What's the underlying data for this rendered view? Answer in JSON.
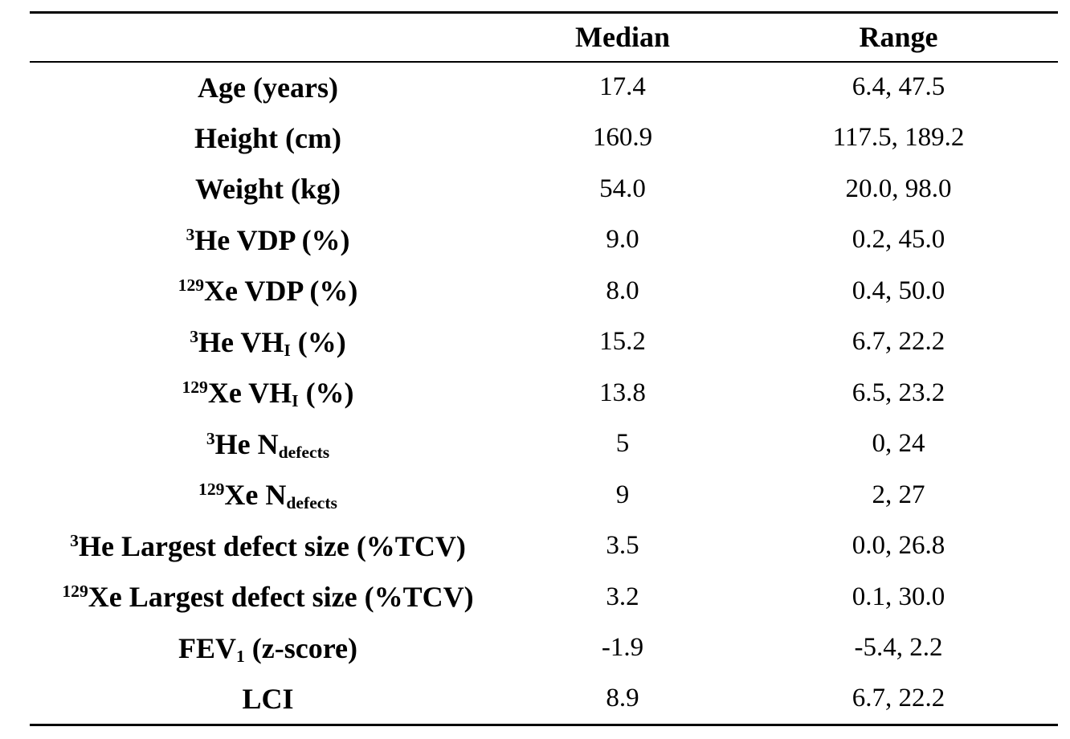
{
  "colors": {
    "text": "#000000",
    "background": "#ffffff",
    "rule": "#000000"
  },
  "table": {
    "columns": [
      {
        "label": ""
      },
      {
        "label": "Median"
      },
      {
        "label": "Range"
      }
    ],
    "rows": [
      {
        "label": [
          {
            "t": "text",
            "v": "Age (years)"
          }
        ],
        "median": "17.4",
        "range": "6.4, 47.5"
      },
      {
        "label": [
          {
            "t": "text",
            "v": "Height (cm)"
          }
        ],
        "median": "160.9",
        "range": "117.5, 189.2"
      },
      {
        "label": [
          {
            "t": "text",
            "v": "Weight (kg)"
          }
        ],
        "median": "54.0",
        "range": "20.0, 98.0"
      },
      {
        "label": [
          {
            "t": "sup",
            "v": "3"
          },
          {
            "t": "text",
            "v": "He VDP (%)"
          }
        ],
        "median": "9.0",
        "range": "0.2, 45.0"
      },
      {
        "label": [
          {
            "t": "sup",
            "v": "129"
          },
          {
            "t": "text",
            "v": "Xe VDP (%)"
          }
        ],
        "median": "8.0",
        "range": "0.4, 50.0"
      },
      {
        "label": [
          {
            "t": "sup",
            "v": "3"
          },
          {
            "t": "text",
            "v": "He VH"
          },
          {
            "t": "sub",
            "v": "I"
          },
          {
            "t": "text",
            "v": " (%)"
          }
        ],
        "median": "15.2",
        "range": "6.7, 22.2"
      },
      {
        "label": [
          {
            "t": "sup",
            "v": "129"
          },
          {
            "t": "text",
            "v": "Xe VH"
          },
          {
            "t": "sub",
            "v": "I"
          },
          {
            "t": "text",
            "v": " (%)"
          }
        ],
        "median": "13.8",
        "range": "6.5, 23.2"
      },
      {
        "label": [
          {
            "t": "sup",
            "v": "3"
          },
          {
            "t": "text",
            "v": "He N"
          },
          {
            "t": "sub",
            "v": "defects"
          }
        ],
        "median": "5",
        "range": "0, 24"
      },
      {
        "label": [
          {
            "t": "sup",
            "v": "129"
          },
          {
            "t": "text",
            "v": "Xe N"
          },
          {
            "t": "sub",
            "v": "defects"
          }
        ],
        "median": "9",
        "range": "2, 27"
      },
      {
        "label": [
          {
            "t": "sup",
            "v": "3"
          },
          {
            "t": "text",
            "v": "He Largest defect size (%TCV)"
          }
        ],
        "median": "3.5",
        "range": "0.0, 26.8"
      },
      {
        "label": [
          {
            "t": "sup",
            "v": "129"
          },
          {
            "t": "text",
            "v": "Xe Largest defect size (%TCV)"
          }
        ],
        "median": "3.2",
        "range": "0.1, 30.0"
      },
      {
        "label": [
          {
            "t": "text",
            "v": "FEV"
          },
          {
            "t": "sub",
            "v": "1"
          },
          {
            "t": "text",
            "v": " (z-score)"
          }
        ],
        "median": "-1.9",
        "range": "-5.4, 2.2"
      },
      {
        "label": [
          {
            "t": "text",
            "v": "LCI"
          }
        ],
        "median": "8.9",
        "range": "6.7, 22.2"
      }
    ]
  }
}
